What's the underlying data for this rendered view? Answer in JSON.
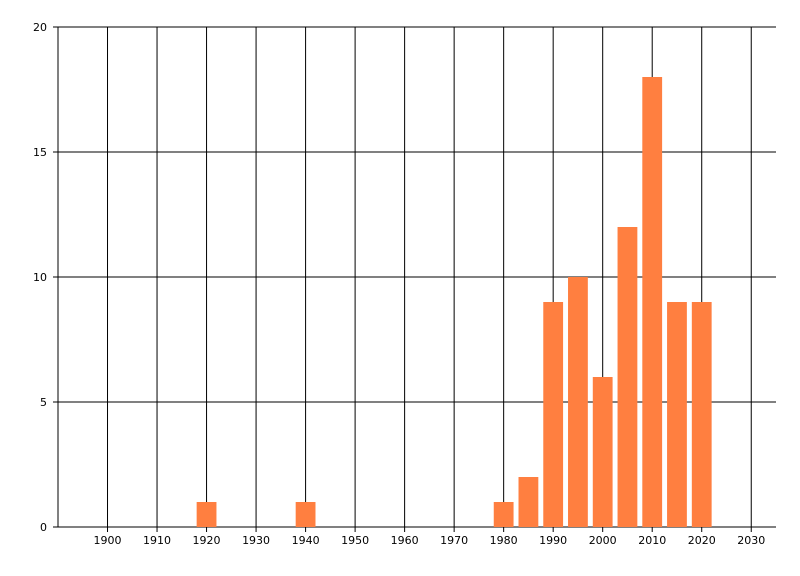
{
  "chart_data": {
    "type": "bar",
    "x": [
      1920,
      1940,
      1980,
      1985,
      1990,
      1995,
      2000,
      2005,
      2010,
      2015,
      2020
    ],
    "values": [
      1,
      1,
      1,
      2,
      9,
      10,
      6,
      12,
      18,
      9,
      9
    ],
    "color": "#ff7f40",
    "xlim": [
      1890,
      2035
    ],
    "xticks": [
      1900,
      1910,
      1920,
      1930,
      1940,
      1950,
      1960,
      1970,
      1980,
      1990,
      2000,
      2010,
      2020,
      2030
    ],
    "ylim": [
      0,
      20
    ],
    "yticks": [
      0,
      5,
      10,
      15,
      20
    ],
    "grid": true
  }
}
